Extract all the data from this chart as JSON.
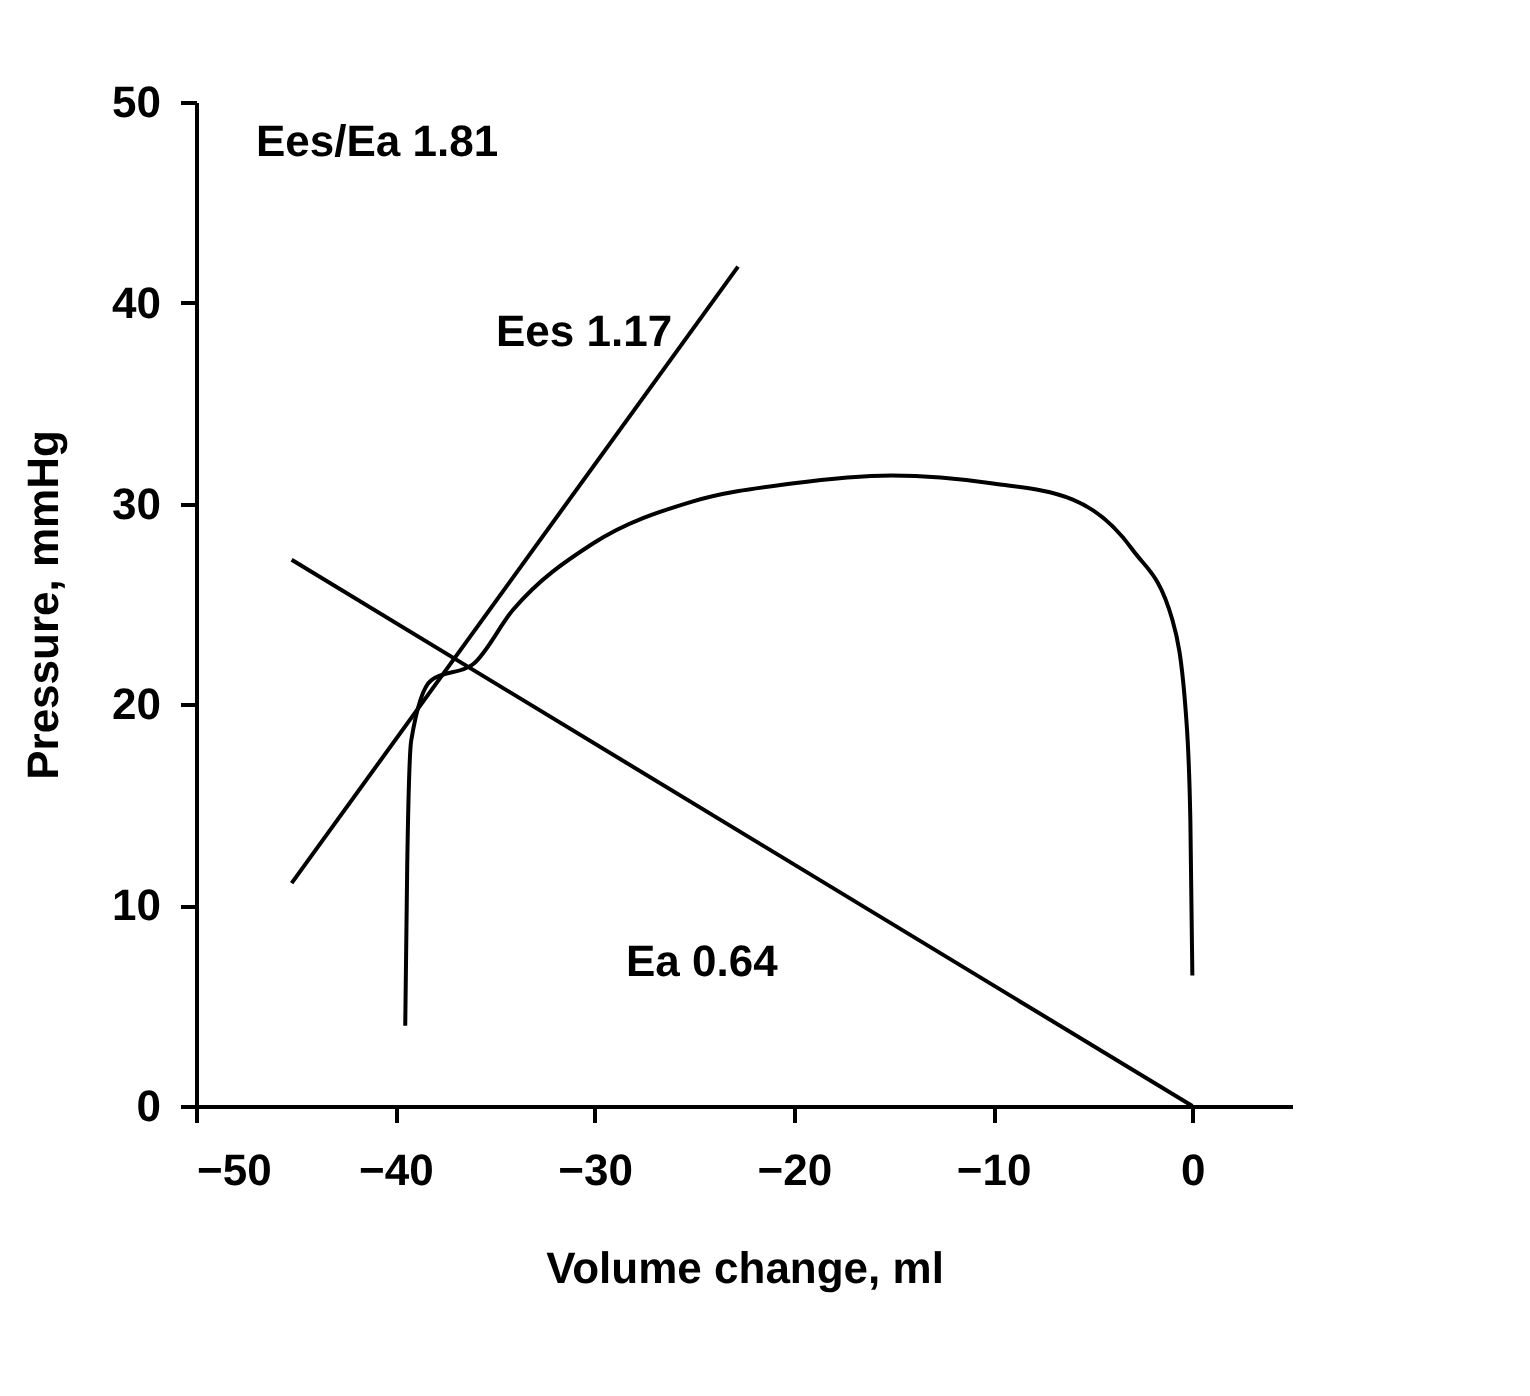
{
  "chart_data": {
    "type": "line",
    "xlabel": "Volume change, ml",
    "ylabel": "Pressure, mmHg",
    "xlim": [
      -50,
      5
    ],
    "xticks": [
      -50,
      -40,
      -30,
      -20,
      -10,
      0
    ],
    "ylim": [
      0,
      50
    ],
    "yticks": [
      0,
      10,
      20,
      30,
      40,
      50
    ],
    "grid": false,
    "marker": "none",
    "line_style": "solid",
    "series": [
      {
        "color": "#000000",
        "x": [
          -39.5,
          -39.4,
          -39.2,
          -38.2,
          -36.1,
          -34.1,
          -30.1,
          -25.1,
          -20.1,
          -15.1,
          -10,
          -6,
          -3,
          -1,
          -0.3,
          -0.1,
          0
        ],
        "values": [
          4,
          12,
          18.2,
          21.2,
          22,
          24.7,
          28,
          30.1,
          31,
          31.4,
          31,
          30.2,
          27.7,
          24.2,
          19.2,
          14.2,
          6.5
        ]
      },
      {
        "color": "#000000",
        "x": [
          -45.2,
          -22.8
        ],
        "values": [
          11.1,
          41.8
        ]
      },
      {
        "color": "#000000",
        "x": [
          -45.2,
          0
        ],
        "values": [
          27.2,
          0
        ]
      }
    ],
    "annotations": [
      "Ees/Ea 1.81",
      "Ees 1.17",
      "Ea 0.64"
    ]
  }
}
